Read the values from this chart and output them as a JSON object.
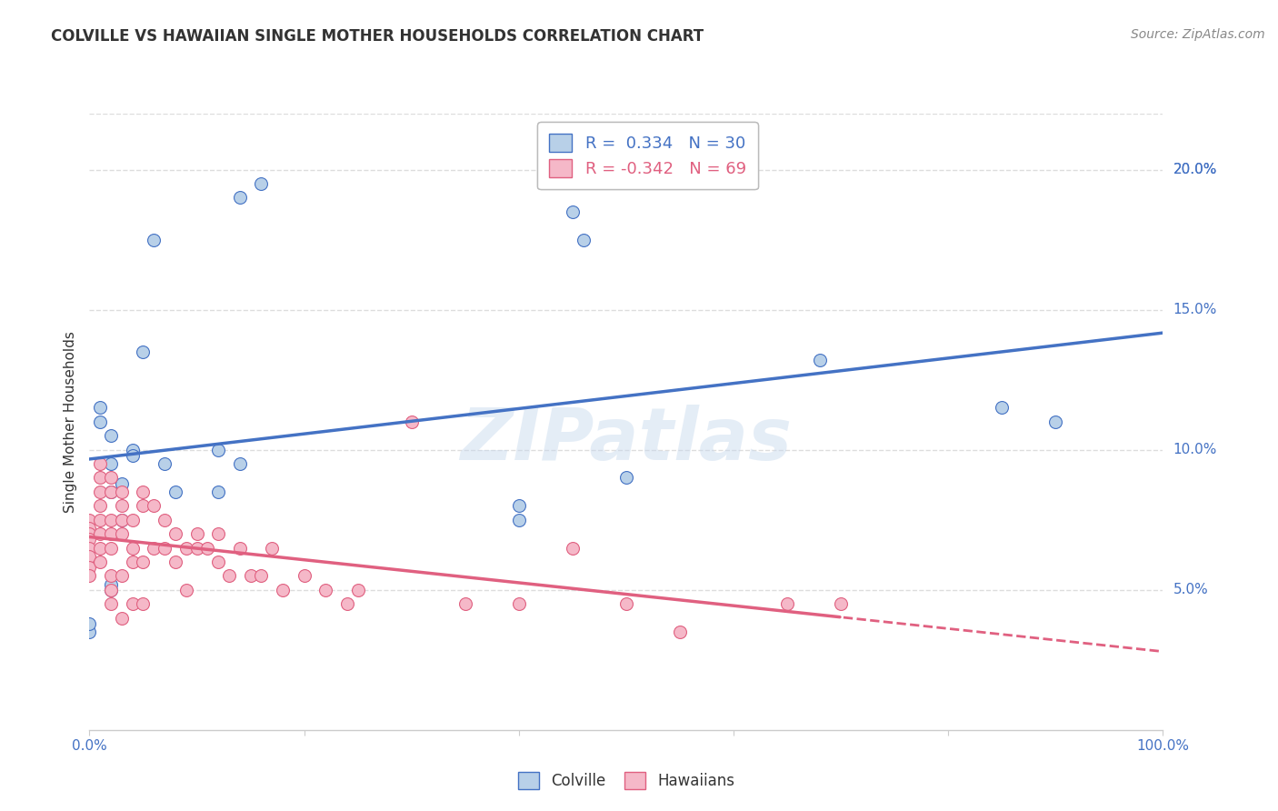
{
  "title": "COLVILLE VS HAWAIIAN SINGLE MOTHER HOUSEHOLDS CORRELATION CHART",
  "source": "Source: ZipAtlas.com",
  "ylabel": "Single Mother Households",
  "colville_R": 0.334,
  "colville_N": 30,
  "hawaiian_R": -0.342,
  "hawaiian_N": 69,
  "colville_color": "#b8d0e8",
  "colville_line_color": "#4472c4",
  "hawaiian_color": "#f5b8c8",
  "hawaiian_line_color": "#e06080",
  "watermark": "ZIPatlas",
  "colville_points": [
    [
      0.0,
      3.5
    ],
    [
      0.0,
      3.8
    ],
    [
      0.01,
      11.5
    ],
    [
      0.01,
      11.0
    ],
    [
      0.02,
      10.5
    ],
    [
      0.02,
      9.5
    ],
    [
      0.02,
      8.5
    ],
    [
      0.02,
      5.0
    ],
    [
      0.02,
      5.2
    ],
    [
      0.03,
      7.5
    ],
    [
      0.03,
      8.8
    ],
    [
      0.04,
      10.0
    ],
    [
      0.04,
      9.8
    ],
    [
      0.05,
      13.5
    ],
    [
      0.06,
      17.5
    ],
    [
      0.07,
      9.5
    ],
    [
      0.08,
      8.5
    ],
    [
      0.12,
      10.0
    ],
    [
      0.12,
      8.5
    ],
    [
      0.14,
      9.5
    ],
    [
      0.14,
      19.0
    ],
    [
      0.16,
      19.5
    ],
    [
      0.4,
      7.5
    ],
    [
      0.4,
      8.0
    ],
    [
      0.45,
      18.5
    ],
    [
      0.46,
      17.5
    ],
    [
      0.5,
      9.0
    ],
    [
      0.68,
      13.2
    ],
    [
      0.85,
      11.5
    ],
    [
      0.9,
      11.0
    ]
  ],
  "hawaiian_points": [
    [
      0.0,
      7.5
    ],
    [
      0.0,
      7.2
    ],
    [
      0.0,
      7.0
    ],
    [
      0.0,
      6.8
    ],
    [
      0.0,
      6.5
    ],
    [
      0.0,
      6.2
    ],
    [
      0.0,
      5.8
    ],
    [
      0.0,
      5.5
    ],
    [
      0.01,
      9.5
    ],
    [
      0.01,
      9.0
    ],
    [
      0.01,
      8.5
    ],
    [
      0.01,
      8.0
    ],
    [
      0.01,
      7.5
    ],
    [
      0.01,
      7.0
    ],
    [
      0.01,
      6.5
    ],
    [
      0.01,
      6.0
    ],
    [
      0.02,
      9.0
    ],
    [
      0.02,
      8.5
    ],
    [
      0.02,
      7.5
    ],
    [
      0.02,
      7.0
    ],
    [
      0.02,
      6.5
    ],
    [
      0.02,
      5.5
    ],
    [
      0.02,
      5.0
    ],
    [
      0.02,
      4.5
    ],
    [
      0.03,
      8.5
    ],
    [
      0.03,
      8.0
    ],
    [
      0.03,
      7.5
    ],
    [
      0.03,
      7.0
    ],
    [
      0.03,
      5.5
    ],
    [
      0.03,
      4.0
    ],
    [
      0.04,
      7.5
    ],
    [
      0.04,
      6.5
    ],
    [
      0.04,
      6.0
    ],
    [
      0.04,
      4.5
    ],
    [
      0.05,
      8.5
    ],
    [
      0.05,
      8.0
    ],
    [
      0.05,
      6.0
    ],
    [
      0.05,
      4.5
    ],
    [
      0.06,
      8.0
    ],
    [
      0.06,
      6.5
    ],
    [
      0.07,
      7.5
    ],
    [
      0.07,
      6.5
    ],
    [
      0.08,
      7.0
    ],
    [
      0.08,
      6.0
    ],
    [
      0.09,
      6.5
    ],
    [
      0.09,
      5.0
    ],
    [
      0.1,
      7.0
    ],
    [
      0.1,
      6.5
    ],
    [
      0.11,
      6.5
    ],
    [
      0.12,
      7.0
    ],
    [
      0.12,
      6.0
    ],
    [
      0.13,
      5.5
    ],
    [
      0.14,
      6.5
    ],
    [
      0.15,
      5.5
    ],
    [
      0.16,
      5.5
    ],
    [
      0.17,
      6.5
    ],
    [
      0.18,
      5.0
    ],
    [
      0.2,
      5.5
    ],
    [
      0.22,
      5.0
    ],
    [
      0.24,
      4.5
    ],
    [
      0.25,
      5.0
    ],
    [
      0.3,
      11.0
    ],
    [
      0.35,
      4.5
    ],
    [
      0.4,
      4.5
    ],
    [
      0.45,
      6.5
    ],
    [
      0.5,
      4.5
    ],
    [
      0.55,
      3.5
    ],
    [
      0.65,
      4.5
    ],
    [
      0.7,
      4.5
    ]
  ],
  "xlim": [
    0.0,
    1.0
  ],
  "ylim": [
    0.0,
    22.0
  ],
  "ytick_vals": [
    5.0,
    10.0,
    15.0,
    20.0
  ],
  "ytick_labels": [
    "5.0%",
    "10.0%",
    "15.0%",
    "20.0%"
  ],
  "background_color": "#ffffff",
  "grid_color": "#dddddd",
  "marker_size": 100,
  "marker_edge_width": 0.8
}
